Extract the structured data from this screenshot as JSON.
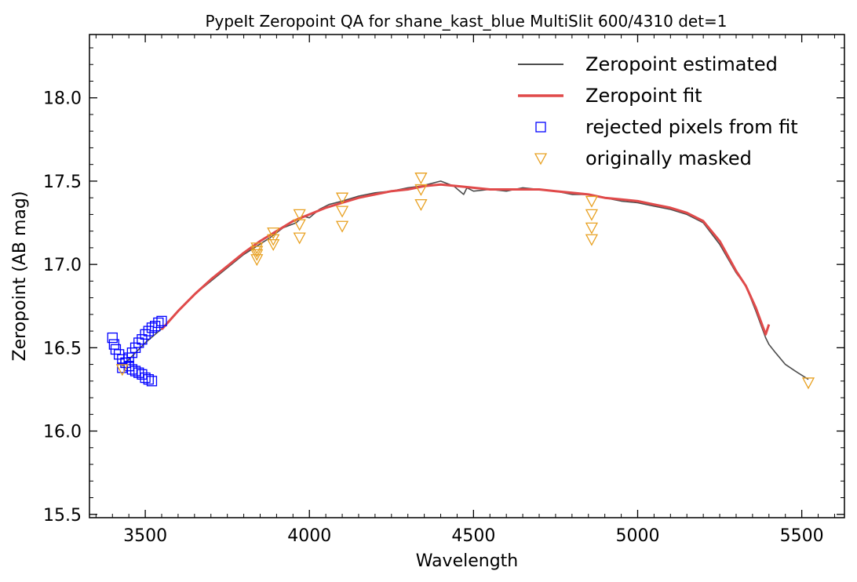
{
  "chart_data": {
    "type": "line",
    "title": "PypeIt Zeropoint QA for shane_kast_blue MultiSlit 600/4310 det=1",
    "xlabel": "Wavelength",
    "ylabel": "Zeropoint (AB mag)",
    "xlim": [
      3330,
      5630
    ],
    "ylim": [
      15.48,
      18.38
    ],
    "xticks": [
      3500,
      4000,
      4500,
      5000,
      5500
    ],
    "yticks": [
      15.5,
      16.0,
      16.5,
      17.0,
      17.5,
      18.0
    ],
    "xtick_labels": [
      "3500",
      "4000",
      "4500",
      "5000",
      "5500"
    ],
    "ytick_labels": [
      "15.5",
      "16.0",
      "16.5",
      "17.0",
      "17.5",
      "18.0"
    ],
    "legend_position": "upper right",
    "series": [
      {
        "name": "Zeropoint estimated",
        "style": "line",
        "color": "#4d4d4d",
        "x": [
          3430,
          3460,
          3500,
          3530,
          3560,
          3600,
          3650,
          3700,
          3750,
          3800,
          3840,
          3880,
          3920,
          3960,
          3980,
          4000,
          4030,
          4060,
          4100,
          4150,
          4200,
          4250,
          4300,
          4340,
          4360,
          4400,
          4440,
          4470,
          4480,
          4500,
          4550,
          4600,
          4650,
          4700,
          4750,
          4800,
          4850,
          4870,
          4900,
          4950,
          5000,
          5050,
          5100,
          5150,
          5200,
          5250,
          5300,
          5330,
          5360,
          5390,
          5400,
          5420,
          5450,
          5480,
          5520
        ],
        "y": [
          16.39,
          16.45,
          16.53,
          16.58,
          16.63,
          16.72,
          16.82,
          16.9,
          16.98,
          17.06,
          17.11,
          17.16,
          17.22,
          17.25,
          17.29,
          17.28,
          17.33,
          17.36,
          17.38,
          17.41,
          17.43,
          17.44,
          17.46,
          17.47,
          17.48,
          17.5,
          17.47,
          17.42,
          17.46,
          17.44,
          17.45,
          17.44,
          17.46,
          17.45,
          17.44,
          17.42,
          17.42,
          17.41,
          17.4,
          17.38,
          17.37,
          17.35,
          17.33,
          17.3,
          17.25,
          17.12,
          16.95,
          16.87,
          16.72,
          16.56,
          16.52,
          16.47,
          16.4,
          16.36,
          16.31
        ]
      },
      {
        "name": "Zeropoint fit",
        "style": "line",
        "color": "#e04a4a",
        "x": [
          3550,
          3600,
          3650,
          3700,
          3750,
          3800,
          3850,
          3900,
          3950,
          4000,
          4050,
          4100,
          4150,
          4200,
          4250,
          4300,
          4350,
          4400,
          4450,
          4500,
          4550,
          4600,
          4650,
          4700,
          4750,
          4800,
          4850,
          4900,
          4950,
          5000,
          5050,
          5100,
          5150,
          5200,
          5250,
          5300,
          5330,
          5360,
          5390,
          5400
        ],
        "y": [
          16.61,
          16.72,
          16.82,
          16.91,
          16.99,
          17.07,
          17.14,
          17.2,
          17.26,
          17.3,
          17.34,
          17.37,
          17.4,
          17.42,
          17.44,
          17.45,
          17.47,
          17.48,
          17.47,
          17.46,
          17.45,
          17.45,
          17.45,
          17.45,
          17.44,
          17.43,
          17.42,
          17.4,
          17.39,
          17.38,
          17.36,
          17.34,
          17.31,
          17.26,
          17.14,
          16.96,
          16.87,
          16.74,
          16.58,
          16.64
        ]
      },
      {
        "name": "rejected pixels from fit",
        "style": "markers",
        "marker": "square",
        "color": "#0000ff",
        "x": [
          3430,
          3440,
          3450,
          3460,
          3470,
          3480,
          3490,
          3500,
          3510,
          3520,
          3530,
          3540,
          3550,
          3400,
          3405,
          3410,
          3420,
          3430,
          3440,
          3450,
          3460,
          3470,
          3480,
          3490,
          3500,
          3510,
          3520
        ],
        "y": [
          16.38,
          16.41,
          16.44,
          16.47,
          16.5,
          16.53,
          16.55,
          16.58,
          16.6,
          16.62,
          16.63,
          16.65,
          16.66,
          16.56,
          16.52,
          16.49,
          16.46,
          16.43,
          16.41,
          16.39,
          16.37,
          16.36,
          16.35,
          16.34,
          16.32,
          16.31,
          16.3
        ]
      },
      {
        "name": "originally masked",
        "style": "markers",
        "marker": "triangle-down",
        "color": "#e8a020",
        "x": [
          3430,
          3840,
          3840,
          3840,
          3840,
          3890,
          3890,
          3890,
          3970,
          3970,
          3970,
          4100,
          4100,
          4100,
          4340,
          4340,
          4340,
          4860,
          4860,
          4860,
          4860,
          5520
        ],
        "y": [
          16.37,
          17.1,
          17.06,
          17.03,
          17.08,
          17.19,
          17.15,
          17.12,
          17.3,
          17.24,
          17.16,
          17.4,
          17.32,
          17.23,
          17.52,
          17.45,
          17.36,
          17.38,
          17.3,
          17.22,
          17.15,
          16.29
        ]
      }
    ]
  }
}
